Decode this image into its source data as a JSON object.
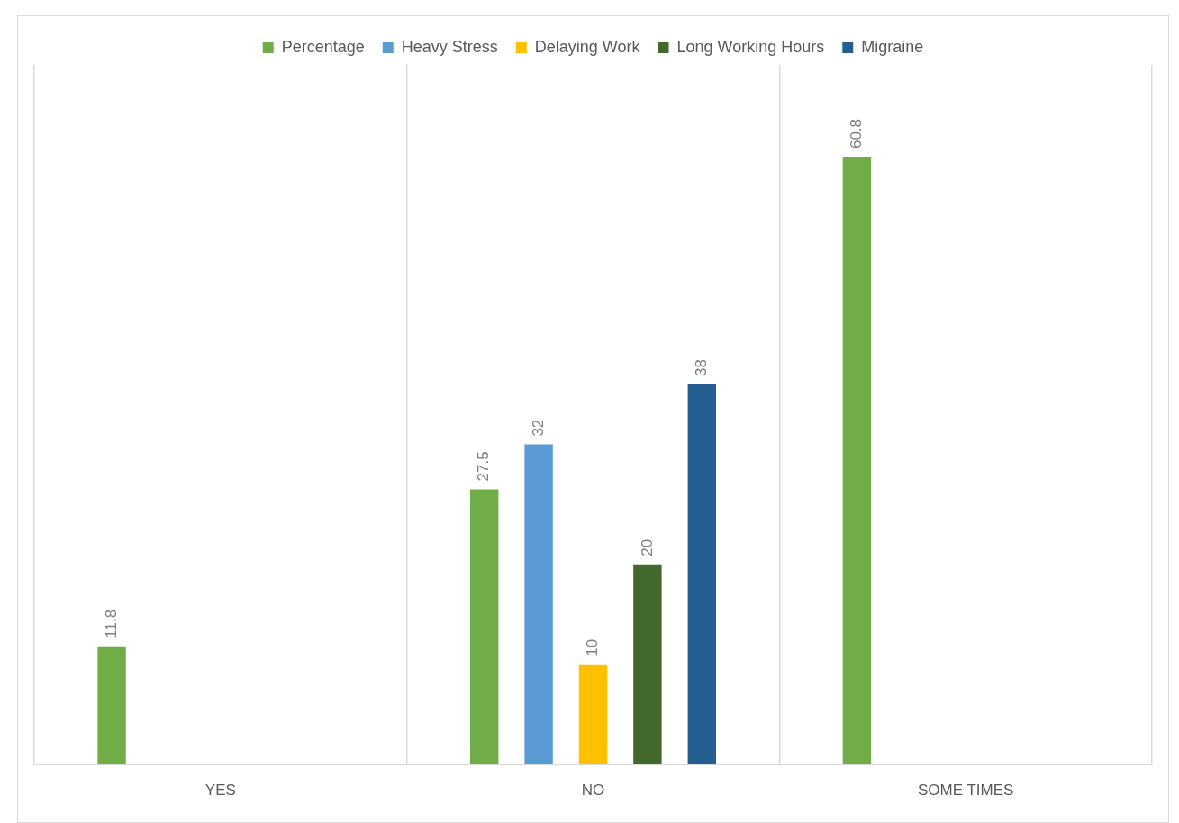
{
  "chart_data": {
    "type": "bar",
    "categories": [
      "YES",
      "NO",
      "SOME TIMES"
    ],
    "series": [
      {
        "name": "Percentage",
        "color": "#70ad47",
        "values": [
          11.8,
          27.5,
          60.8
        ]
      },
      {
        "name": "Heavy Stress",
        "color": "#5b9bd5",
        "values": [
          null,
          32,
          null
        ]
      },
      {
        "name": "Delaying Work",
        "color": "#ffc000",
        "values": [
          null,
          10,
          null
        ]
      },
      {
        "name": "Long Working Hours",
        "color": "#43682b",
        "values": [
          null,
          20,
          null
        ]
      },
      {
        "name": "Migraine",
        "color": "#255e91",
        "values": [
          null,
          38,
          null
        ]
      }
    ],
    "data_labels": true,
    "grid": "x",
    "legend": "top"
  }
}
